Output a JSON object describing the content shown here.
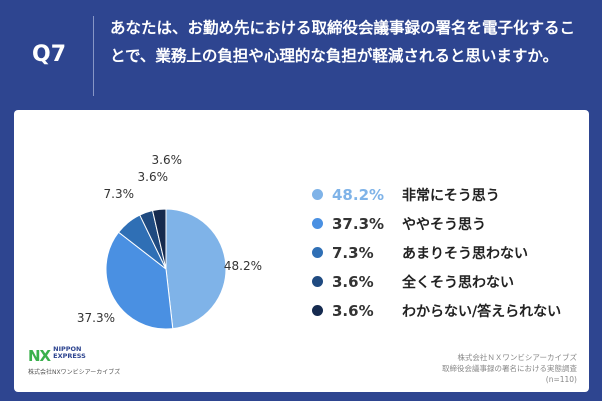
{
  "header": {
    "qnum": "Q7",
    "question": "あなたは、お勤め先における取締役会議事録の署名を電子化することで、業務上の負担や心理的な負担が軽減されると思いますか。"
  },
  "chart_data": {
    "type": "pie",
    "title": "",
    "start_angle_deg": 0,
    "direction": "clockwise",
    "slices": [
      {
        "value": 48.2,
        "label": "48.2%",
        "name": "非常にそう思う",
        "color": "#7fb3e8"
      },
      {
        "value": 37.3,
        "label": "37.3%",
        "name": "ややそう思う",
        "color": "#4a90e2"
      },
      {
        "value": 7.3,
        "label": "7.3%",
        "name": "あまりそう思わない",
        "color": "#2f6fb5"
      },
      {
        "value": 3.6,
        "label": "3.6%",
        "name": "全くそう思わない",
        "color": "#1f4a80"
      },
      {
        "value": 3.6,
        "label": "3.6%",
        "name": "わからない/答えられない",
        "color": "#152a4f"
      }
    ],
    "legend_placement": "right"
  },
  "logo": {
    "mark": "NX",
    "name_line1": "NIPPON",
    "name_line2": "EXPRESS",
    "company": "株式会社NXワンビシアーカイブズ"
  },
  "source": {
    "line1": "株式会社ＮＸワンビシアーカイブズ",
    "line2": "取締役会議事録の署名における実態調査",
    "line3": "(n=110)"
  }
}
